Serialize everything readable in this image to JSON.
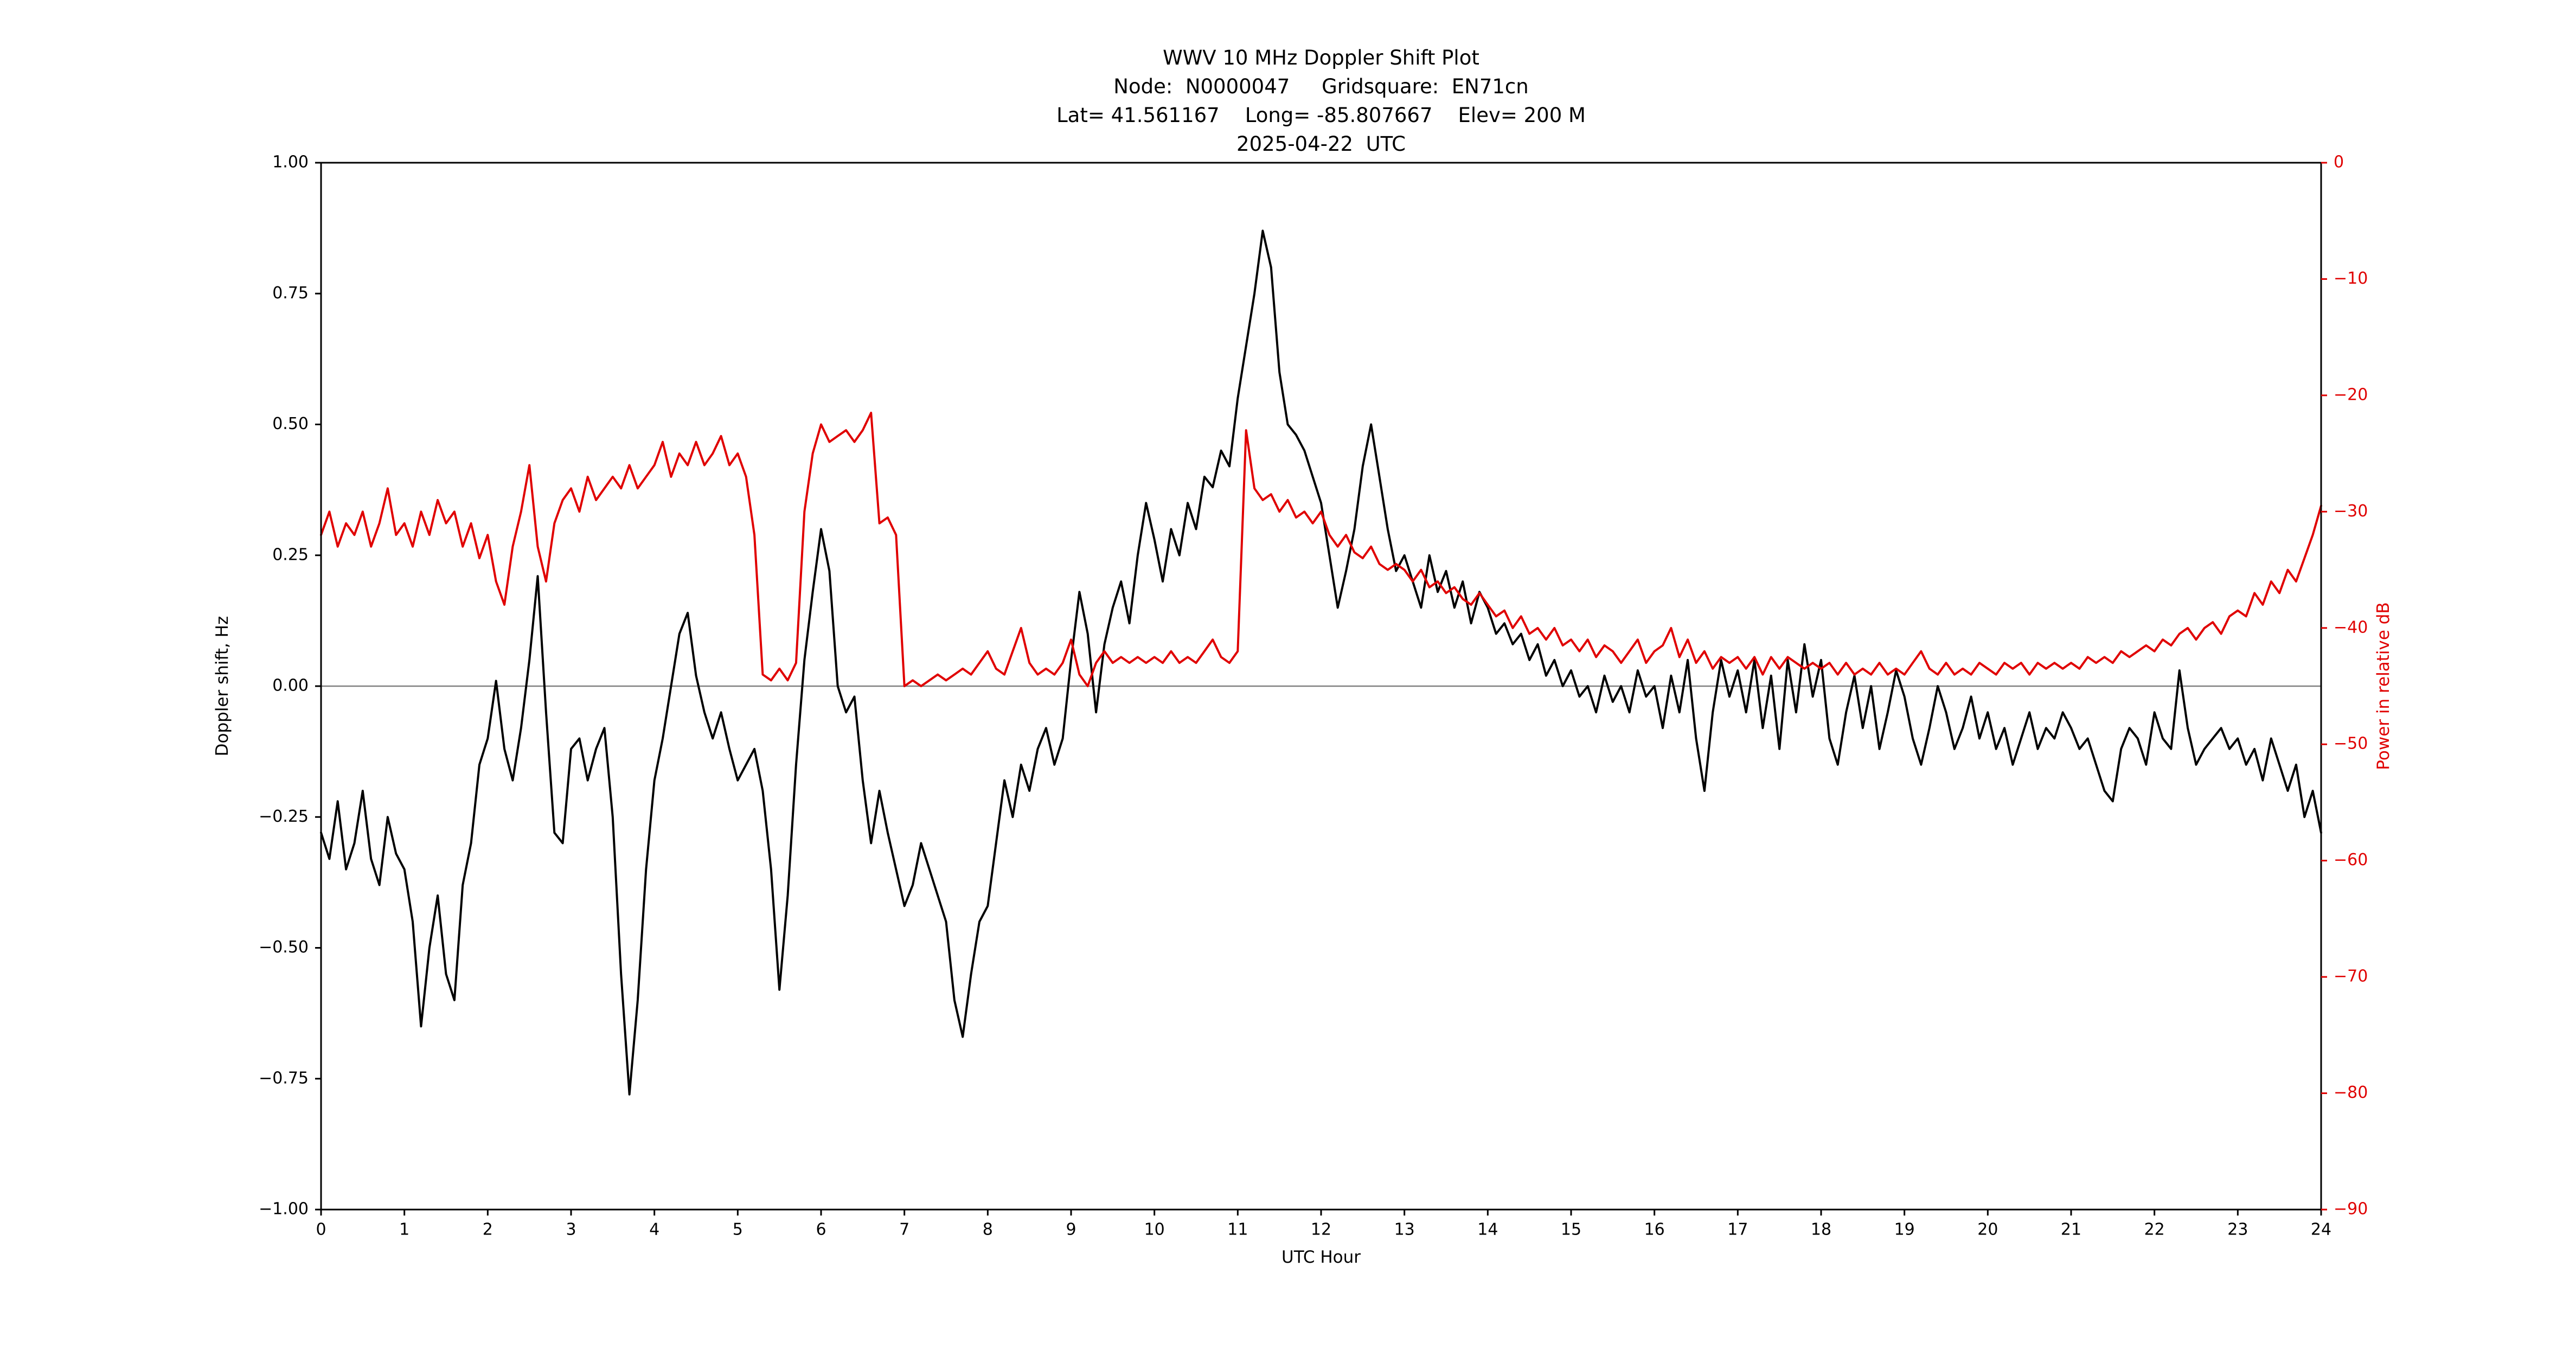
{
  "title": {
    "line1": "WWV 10 MHz Doppler Shift Plot",
    "line2": "Node:  N0000047     Gridsquare:  EN71cn",
    "line3": "Lat= 41.561167    Long= -85.807667    Elev= 200 M",
    "line4": "2025-04-22  UTC"
  },
  "chart_data": {
    "type": "line",
    "title": "WWV 10 MHz Doppler Shift Plot",
    "subtitle_lines": [
      "Node:  N0000047     Gridsquare:  EN71cn",
      "Lat= 41.561167    Long= -85.807667    Elev= 200 M",
      "2025-04-22  UTC"
    ],
    "xlabel": "UTC Hour",
    "ylabel_left": "Doppler shift, Hz",
    "ylabel_right": "Power in relative dB",
    "grid": false,
    "zero_reference_line": 0.0,
    "x_axis": {
      "range": [
        0,
        24
      ],
      "ticks": [
        0,
        1,
        2,
        3,
        4,
        5,
        6,
        7,
        8,
        9,
        10,
        11,
        12,
        13,
        14,
        15,
        16,
        17,
        18,
        19,
        20,
        21,
        22,
        23,
        24
      ],
      "tick_labels": [
        "0",
        "1",
        "2",
        "3",
        "4",
        "5",
        "6",
        "7",
        "8",
        "9",
        "10",
        "11",
        "12",
        "13",
        "14",
        "15",
        "16",
        "17",
        "18",
        "19",
        "20",
        "21",
        "22",
        "23",
        "24"
      ]
    },
    "y_left": {
      "range": [
        -1.0,
        1.0
      ],
      "ticks": [
        1.0,
        0.75,
        0.5,
        0.25,
        0.0,
        -0.25,
        -0.5,
        -0.75,
        -1.0
      ],
      "tick_labels": [
        "1.00",
        "0.75",
        "0.50",
        "0.25",
        "0.00",
        "−0.25",
        "−0.50",
        "−0.75",
        "−1.00"
      ]
    },
    "y_right": {
      "range": [
        -90,
        0
      ],
      "ticks": [
        0,
        -10,
        -20,
        -30,
        -40,
        -50,
        -60,
        -70,
        -80,
        -90
      ],
      "tick_labels": [
        "0",
        "−10",
        "−20",
        "−30",
        "−40",
        "−50",
        "−60",
        "−70",
        "−80",
        "−90"
      ]
    },
    "colors": {
      "doppler": "#000000",
      "power": "#e00000",
      "zero_line": "#808080",
      "frame": "#000000"
    },
    "series": [
      {
        "name": "Doppler shift",
        "axis": "left",
        "x_start": 0.0,
        "x_step": 0.1,
        "values": [
          -0.28,
          -0.33,
          -0.22,
          -0.35,
          -0.3,
          -0.2,
          -0.33,
          -0.38,
          -0.25,
          -0.32,
          -0.35,
          -0.45,
          -0.65,
          -0.5,
          -0.4,
          -0.55,
          -0.6,
          -0.38,
          -0.3,
          -0.15,
          -0.1,
          0.01,
          -0.12,
          -0.18,
          -0.08,
          0.05,
          0.21,
          -0.05,
          -0.28,
          -0.3,
          -0.12,
          -0.1,
          -0.18,
          -0.12,
          -0.08,
          -0.25,
          -0.55,
          -0.78,
          -0.6,
          -0.35,
          -0.18,
          -0.1,
          0.0,
          0.1,
          0.14,
          0.02,
          -0.05,
          -0.1,
          -0.05,
          -0.12,
          -0.18,
          -0.15,
          -0.12,
          -0.2,
          -0.35,
          -0.58,
          -0.4,
          -0.15,
          0.05,
          0.18,
          0.3,
          0.22,
          0.0,
          -0.05,
          -0.02,
          -0.18,
          -0.3,
          -0.2,
          -0.28,
          -0.35,
          -0.42,
          -0.38,
          -0.3,
          -0.35,
          -0.4,
          -0.45,
          -0.6,
          -0.67,
          -0.55,
          -0.45,
          -0.42,
          -0.3,
          -0.18,
          -0.25,
          -0.15,
          -0.2,
          -0.12,
          -0.08,
          -0.15,
          -0.1,
          0.05,
          0.18,
          0.1,
          -0.05,
          0.08,
          0.15,
          0.2,
          0.12,
          0.25,
          0.35,
          0.28,
          0.2,
          0.3,
          0.25,
          0.35,
          0.3,
          0.4,
          0.38,
          0.45,
          0.42,
          0.55,
          0.65,
          0.75,
          0.87,
          0.8,
          0.6,
          0.5,
          0.48,
          0.45,
          0.4,
          0.35,
          0.25,
          0.15,
          0.22,
          0.3,
          0.42,
          0.5,
          0.4,
          0.3,
          0.22,
          0.25,
          0.2,
          0.15,
          0.25,
          0.18,
          0.22,
          0.15,
          0.2,
          0.12,
          0.18,
          0.15,
          0.1,
          0.12,
          0.08,
          0.1,
          0.05,
          0.08,
          0.02,
          0.05,
          0.0,
          0.03,
          -0.02,
          0.0,
          -0.05,
          0.02,
          -0.03,
          0.0,
          -0.05,
          0.03,
          -0.02,
          0.0,
          -0.08,
          0.02,
          -0.05,
          0.05,
          -0.1,
          -0.2,
          -0.05,
          0.05,
          -0.02,
          0.03,
          -0.05,
          0.05,
          -0.08,
          0.02,
          -0.12,
          0.05,
          -0.05,
          0.08,
          -0.02,
          0.05,
          -0.1,
          -0.15,
          -0.05,
          0.02,
          -0.08,
          0.0,
          -0.12,
          -0.05,
          0.03,
          -0.02,
          -0.1,
          -0.15,
          -0.08,
          0.0,
          -0.05,
          -0.12,
          -0.08,
          -0.02,
          -0.1,
          -0.05,
          -0.12,
          -0.08,
          -0.15,
          -0.1,
          -0.05,
          -0.12,
          -0.08,
          -0.1,
          -0.05,
          -0.08,
          -0.12,
          -0.1,
          -0.15,
          -0.2,
          -0.22,
          -0.12,
          -0.08,
          -0.1,
          -0.15,
          -0.05,
          -0.1,
          -0.12,
          0.03,
          -0.08,
          -0.15,
          -0.12,
          -0.1,
          -0.08,
          -0.12,
          -0.1,
          -0.15,
          -0.12,
          -0.18,
          -0.1,
          -0.15,
          -0.2,
          -0.15,
          -0.25,
          -0.2,
          -0.28
        ]
      },
      {
        "name": "Power in relative dB",
        "axis": "right",
        "x_start": 0.0,
        "x_step": 0.1,
        "values": [
          -32,
          -30,
          -33,
          -31,
          -32,
          -30,
          -33,
          -31,
          -28,
          -32,
          -31,
          -33,
          -30,
          -32,
          -29,
          -31,
          -30,
          -33,
          -31,
          -34,
          -32,
          -36,
          -38,
          -33,
          -30,
          -26,
          -33,
          -36,
          -31,
          -29,
          -28,
          -30,
          -27,
          -29,
          -28,
          -27,
          -28,
          -26,
          -28,
          -27,
          -26,
          -24,
          -27,
          -25,
          -26,
          -24,
          -26,
          -25,
          -23.5,
          -26,
          -25,
          -27,
          -32,
          -44,
          -44.5,
          -43.5,
          -44.5,
          -43,
          -30,
          -25,
          -22.5,
          -24,
          -23.5,
          -23,
          -24,
          -23,
          -21.5,
          -31,
          -30.5,
          -32,
          -45,
          -44.5,
          -45,
          -44.5,
          -44,
          -44.5,
          -44,
          -43.5,
          -44,
          -43,
          -42,
          -43.5,
          -44,
          -42,
          -40,
          -43,
          -44,
          -43.5,
          -44,
          -43,
          -41,
          -44,
          -45,
          -43,
          -42,
          -43,
          -42.5,
          -43,
          -42.5,
          -43,
          -42.5,
          -43,
          -42,
          -43,
          -42.5,
          -43,
          -42,
          -41,
          -42.5,
          -43,
          -42,
          -23,
          -28,
          -29,
          -28.5,
          -30,
          -29,
          -30.5,
          -30,
          -31,
          -30,
          -32,
          -33,
          -32,
          -33.5,
          -34,
          -33,
          -34.5,
          -35,
          -34.5,
          -35,
          -36,
          -35,
          -36.5,
          -36,
          -37,
          -36.5,
          -37.5,
          -38,
          -37,
          -38,
          -39,
          -38.5,
          -40,
          -39,
          -40.5,
          -40,
          -41,
          -40,
          -41.5,
          -41,
          -42,
          -41,
          -42.5,
          -41.5,
          -42,
          -43,
          -42,
          -41,
          -43,
          -42,
          -41.5,
          -40,
          -42.5,
          -41,
          -43,
          -42,
          -43.5,
          -42.5,
          -43,
          -42.5,
          -43.5,
          -42.5,
          -44,
          -42.5,
          -43.5,
          -42.5,
          -43,
          -43.5,
          -43,
          -43.5,
          -43,
          -44,
          -43,
          -44,
          -43.5,
          -44,
          -43,
          -44,
          -43.5,
          -44,
          -43,
          -42,
          -43.5,
          -44,
          -43,
          -44,
          -43.5,
          -44,
          -43,
          -43.5,
          -44,
          -43,
          -43.5,
          -43,
          -44,
          -43,
          -43.5,
          -43,
          -43.5,
          -43,
          -43.5,
          -42.5,
          -43,
          -42.5,
          -43,
          -42,
          -42.5,
          -42,
          -41.5,
          -42,
          -41,
          -41.5,
          -40.5,
          -40,
          -41,
          -40,
          -39.5,
          -40.5,
          -39,
          -38.5,
          -39,
          -37,
          -38,
          -36,
          -37,
          -35,
          -36,
          -34,
          -32,
          -29.5
        ]
      }
    ]
  }
}
